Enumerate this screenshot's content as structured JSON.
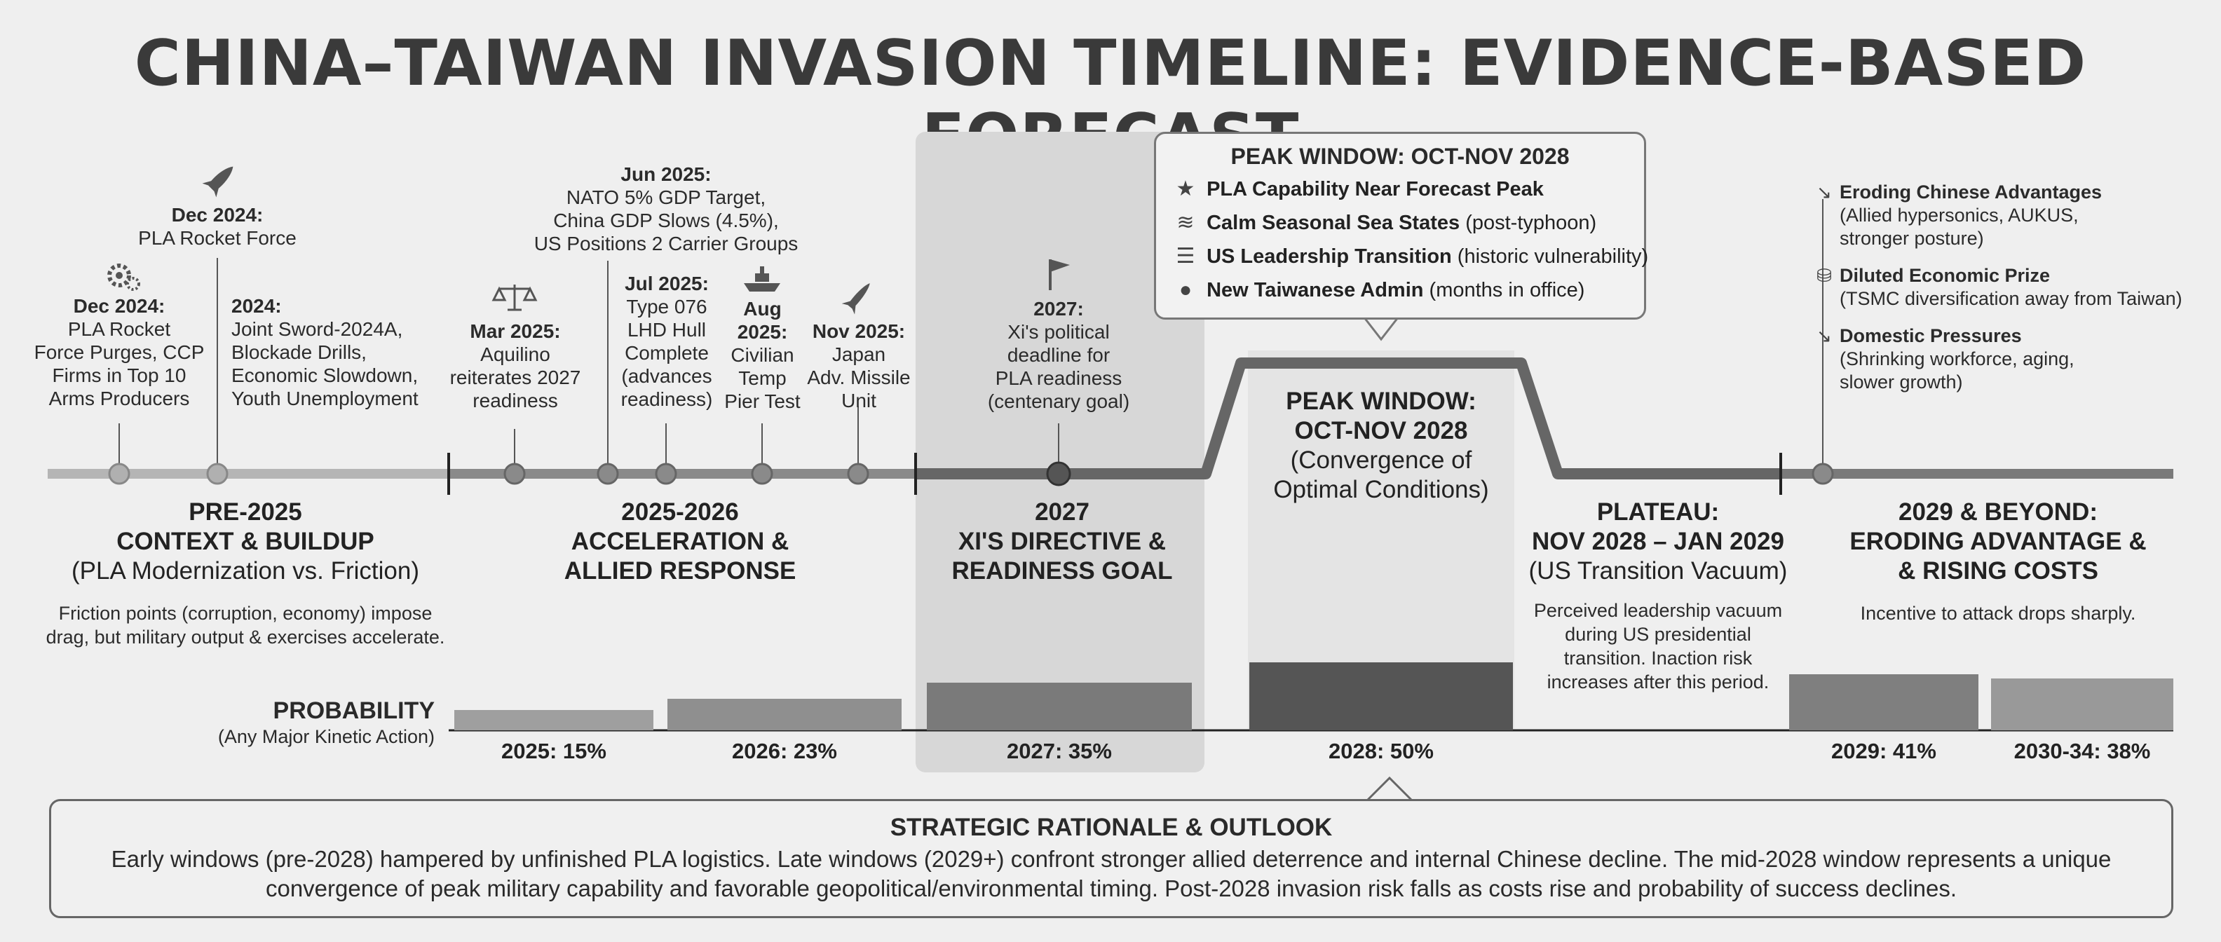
{
  "title": "CHINA–TAIWAN INVASION TIMELINE: EVIDENCE-BASED FORECAST",
  "events": {
    "e1": {
      "date": "Dec 2024:",
      "text": "PLA Rocket\nForce Purges, CCP\nFirms in Top 10\nArms Producers"
    },
    "e2": {
      "date": "Dec 2024:",
      "text": "PLA Rocket Force"
    },
    "e3": {
      "date": "2024:",
      "text": "Joint Sword-2024A,\nBlockade Drills,\nEconomic Slowdown,\nYouth Unemployment"
    },
    "e4": {
      "date": "Mar 2025:",
      "text": "Aquilino\nreiterates 2027\nreadiness"
    },
    "e5": {
      "date": "Jun 2025:",
      "text": "NATO 5% GDP Target,\nChina GDP Slows (4.5%),\nUS Positions 2 Carrier Groups"
    },
    "e6": {
      "date": "Jul 2025:",
      "text": "Type 076\nLHD Hull\nComplete\n(advances\nreadiness)"
    },
    "e7": {
      "date": "Aug\n2025:",
      "text": "Civilian\nTemp\nPier Test"
    },
    "e8": {
      "date": "Nov 2025:",
      "text": "Japan\nAdv. Missile\nUnit"
    },
    "e9": {
      "date": "2027:",
      "text": "Xi's political\ndeadline for\nPLA readiness\n(centenary goal)"
    }
  },
  "callout": {
    "title": "PEAK WINDOW: OCT-NOV 2028",
    "rows": [
      {
        "icon": "star-icon",
        "bold": "PLA Capability Near Forecast Peak",
        "rest": ""
      },
      {
        "icon": "wave-icon",
        "bold": "Calm Seasonal Sea States",
        "rest": " (post-typhoon)"
      },
      {
        "icon": "flag-icon",
        "bold": "US Leadership Transition",
        "rest": " (historic vulnerability)"
      },
      {
        "icon": "person-icon",
        "bold": "New Taiwanese Admin",
        "rest": " (months in office)"
      }
    ]
  },
  "phases": {
    "p1": {
      "title": "PRE-2025\nCONTEXT & BUILDUP",
      "sub": "(PLA Modernization vs. Friction)",
      "desc": "Friction points (corruption, economy) impose\ndrag, but military output & exercises accelerate."
    },
    "p2": {
      "title": "2025-2026\nACCELERATION &\nALLIED RESPONSE",
      "sub": "",
      "desc": ""
    },
    "p3": {
      "title": "2027\nXI'S DIRECTIVE &\nREADINESS GOAL",
      "sub": "",
      "desc": ""
    },
    "p4": {
      "title": "PEAK WINDOW:\nOCT-NOV 2028",
      "sub": "(Convergence of\nOptimal Conditions)",
      "desc": ""
    },
    "p5": {
      "title": "PLATEAU:\nNOV 2028 – JAN 2029",
      "sub": "(US Transition Vacuum)",
      "desc": "Perceived leadership vacuum\nduring US presidential\ntransition. Inaction risk\nincreases after this period."
    },
    "p6": {
      "title": "2029 & BEYOND:\nERODING ADVANTAGE &\n& RISING COSTS",
      "sub": "",
      "desc": "Incentive to attack drops sharply."
    }
  },
  "right_items": [
    {
      "icon": "trend-down-icon",
      "title": "Eroding Chinese Advantages",
      "text": "(Allied hypersonics, AUKUS,\nstronger posture)"
    },
    {
      "icon": "coins-icon",
      "title": "Diluted Economic Prize",
      "text": "(TSMC diversification away from Taiwan)"
    },
    {
      "icon": "trend-down-icon",
      "title": "Domestic Pressures",
      "text": "(Shrinking workforce, aging,\nslower growth)"
    }
  ],
  "probability": {
    "label": "PROBABILITY",
    "sublabel": "(Any Major Kinetic Action)",
    "bars": [
      {
        "label": "2025: 15%",
        "value": 15
      },
      {
        "label": "2026: 23%",
        "value": 23
      },
      {
        "label": "2027: 35%",
        "value": 35
      },
      {
        "label": "2028: 50%",
        "value": 50
      },
      {
        "label": "2029: 41%",
        "value": 41
      },
      {
        "label": "2030-34: 38%",
        "value": 38
      }
    ]
  },
  "outlook": {
    "title": "STRATEGIC RATIONALE & OUTLOOK",
    "text": "Early windows (pre-2028) hampered by unfinished PLA logistics. Late windows (2029+) confront stronger allied deterrence and internal Chinese decline. The mid-2028 window represents a unique\nconvergence of peak military capability and favorable geopolitical/environmental timing. Post-2028 invasion risk falls as costs rise and probability of success declines."
  },
  "colors": {
    "bar_dark": "#555555",
    "bar_mid": "#777777",
    "bar_light": "#9a9a9a",
    "line": "#777777"
  }
}
